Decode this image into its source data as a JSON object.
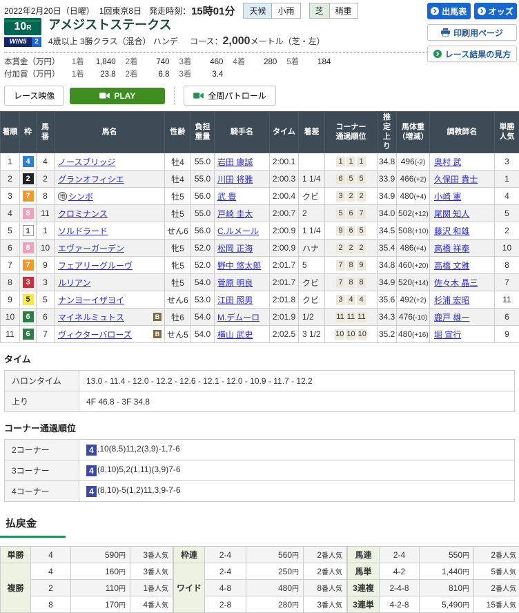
{
  "page": {
    "date": "2022年2月20日（日曜）",
    "meeting": "1回東京8日",
    "start_label": "発走時刻：",
    "start_time": "15時01分",
    "weather_label": "天候",
    "weather_value": "小雨",
    "turf_label": "芝",
    "turf_value": "稍重"
  },
  "actions": {
    "entries": "出馬表",
    "odds": "オッズ",
    "print": "印刷用ページ",
    "guide": "レース結果の見方"
  },
  "race": {
    "number": "10",
    "number_suffix": "R",
    "win5": "WIN5",
    "win5_leg": "2",
    "title": "アメジストステークス",
    "conditions": "4歳以上 3勝クラス（混合） ハンデ",
    "course_label": "コース：",
    "course_distance": "2,000",
    "course_suffix": "メートル（芝・左）",
    "prize_main_label": "本賞金（万円）",
    "prize_main": [
      [
        "1着",
        "1,840"
      ],
      [
        "2着",
        "740"
      ],
      [
        "3着",
        "460"
      ],
      [
        "4着",
        "280"
      ],
      [
        "5着",
        "184"
      ]
    ],
    "prize_extra_label": "付加賞（万円）",
    "prize_extra": [
      [
        "1着",
        "23.8"
      ],
      [
        "2着",
        "6.8"
      ],
      [
        "3着",
        "3.4"
      ]
    ]
  },
  "video": {
    "race_video": "レース映像",
    "play": "PLAY",
    "patrol": "全周パトロール"
  },
  "results": {
    "headers": [
      "着順",
      "枠",
      "馬\n番",
      "馬名",
      "性齢",
      "負担\n重量",
      "騎手名",
      "タイム",
      "着差",
      "コーナー\n通過順位",
      "推\n定\n上\nり",
      "馬体重\n（増減）",
      "調教師名",
      "単勝\n人気"
    ],
    "rows": [
      {
        "rank": "1",
        "waku": "4",
        "num": "4",
        "mark": "",
        "name": "ノースブリッジ",
        "b": false,
        "sex": "牡4",
        "load": "55.0",
        "jockey": "岩田 康誠",
        "time": "2:00.1",
        "margin": "",
        "corners": [
          "1",
          "1",
          "1"
        ],
        "agari": "34.8",
        "bw": "496",
        "bwd": "(-2)",
        "trainer": "奥村 武",
        "pop": "3"
      },
      {
        "rank": "2",
        "waku": "2",
        "num": "2",
        "mark": "",
        "name": "グランオフィシエ",
        "b": false,
        "sex": "牡4",
        "load": "55.0",
        "jockey": "川田 将雅",
        "time": "2:00.3",
        "margin": "1 1/4",
        "corners": [
          "6",
          "5",
          "5"
        ],
        "agari": "33.9",
        "bw": "466",
        "bwd": "(+2)",
        "trainer": "久保田 貴士",
        "pop": "1"
      },
      {
        "rank": "3",
        "waku": "7",
        "num": "8",
        "mark": "地",
        "name": "シンボ",
        "b": false,
        "sex": "牡5",
        "load": "56.0",
        "jockey": "武 豊",
        "time": "2:00.4",
        "margin": "クビ",
        "corners": [
          "3",
          "2",
          "2"
        ],
        "agari": "34.9",
        "bw": "480",
        "bwd": "(+4)",
        "trainer": "小崎 憲",
        "pop": "4"
      },
      {
        "rank": "4",
        "waku": "8",
        "num": "11",
        "mark": "",
        "name": "クロミナンス",
        "b": false,
        "sex": "牡5",
        "load": "55.0",
        "jockey": "戸崎 圭太",
        "time": "2:00.7",
        "margin": "2",
        "corners": [
          "5",
          "6",
          "7"
        ],
        "agari": "34.0",
        "bw": "502",
        "bwd": "(+12)",
        "trainer": "尾関 知人",
        "pop": "5"
      },
      {
        "rank": "5",
        "waku": "1",
        "num": "1",
        "mark": "",
        "name": "ソルドラード",
        "b": false,
        "sex": "せん6",
        "load": "56.0",
        "jockey": "C.ルメール",
        "time": "2:00.9",
        "margin": "1 1/4",
        "corners": [
          "9",
          "6",
          "5"
        ],
        "agari": "34.5",
        "bw": "508",
        "bwd": "(+10)",
        "trainer": "藤沢 和雄",
        "pop": "2"
      },
      {
        "rank": "6",
        "waku": "8",
        "num": "10",
        "mark": "",
        "name": "エヴァーガーデン",
        "b": false,
        "sex": "牝5",
        "load": "52.0",
        "jockey": "松岡 正海",
        "time": "2:00.9",
        "margin": "ハナ",
        "corners": [
          "2",
          "2",
          "2"
        ],
        "agari": "35.4",
        "bw": "486",
        "bwd": "(+4)",
        "trainer": "高橋 祥泰",
        "pop": "10"
      },
      {
        "rank": "7",
        "waku": "7",
        "num": "9",
        "mark": "",
        "name": "フェアリーグルーヴ",
        "b": false,
        "sex": "牝5",
        "load": "52.0",
        "jockey": "野中 悠太郎",
        "time": "2:01.7",
        "margin": "5",
        "corners": [
          "7",
          "8",
          "9"
        ],
        "agari": "34.8",
        "bw": "460",
        "bwd": "(+20)",
        "trainer": "高橋 文雅",
        "pop": "8"
      },
      {
        "rank": "8",
        "waku": "3",
        "num": "3",
        "mark": "",
        "name": "ルリアン",
        "b": false,
        "sex": "牡5",
        "load": "54.0",
        "jockey": "菅原 明良",
        "time": "2:01.7",
        "margin": "クビ",
        "corners": [
          "7",
          "8",
          "8"
        ],
        "agari": "34.9",
        "bw": "520",
        "bwd": "(+14)",
        "trainer": "佐々木 晶三",
        "pop": "7"
      },
      {
        "rank": "9",
        "waku": "5",
        "num": "5",
        "mark": "",
        "name": "ナンヨーイザヨイ",
        "b": false,
        "sex": "せん6",
        "load": "53.0",
        "jockey": "江田 照男",
        "time": "2:01.8",
        "margin": "クビ",
        "corners": [
          "3",
          "4",
          "4"
        ],
        "agari": "35.6",
        "bw": "492",
        "bwd": "(+2)",
        "trainer": "杉浦 宏昭",
        "pop": "11"
      },
      {
        "rank": "10",
        "waku": "6",
        "num": "6",
        "mark": "",
        "name": "マイネルミュトス",
        "b": true,
        "sex": "牡6",
        "load": "54.0",
        "jockey": "M.デムーロ",
        "time": "2:01.9",
        "margin": "1/2",
        "corners": [
          "11",
          "11",
          "11"
        ],
        "agari": "34.3",
        "bw": "476",
        "bwd": "(-10)",
        "trainer": "鹿戸 雄一",
        "pop": "6"
      },
      {
        "rank": "11",
        "waku": "6",
        "num": "7",
        "mark": "",
        "name": "ヴィクターバローズ",
        "b": true,
        "sex": "せん5",
        "load": "54.0",
        "jockey": "横山 武史",
        "time": "2:02.5",
        "margin": "3 1/2",
        "corners": [
          "10",
          "10",
          "10"
        ],
        "agari": "35.2",
        "bw": "480",
        "bwd": "(+16)",
        "trainer": "堀 宣行",
        "pop": "9"
      }
    ],
    "blinker_badge": "B"
  },
  "time_section": {
    "title": "タイム",
    "halon_label": "ハロンタイム",
    "halon_value": "13.0 - 11.4 - 12.0 - 12.2 - 12.6 - 12.1 - 12.0 - 10.9 - 11.7 - 12.2",
    "agari_label": "上り",
    "agari_value": "4F 46.8 - 3F 34.8"
  },
  "corner_section": {
    "title": "コーナー通過順位",
    "rows": [
      {
        "label": "2コーナー",
        "prefix": "4",
        "rest": ",10(8,5)11,2(3,9)-1,7-6"
      },
      {
        "label": "3コーナー",
        "prefix": "4",
        "rest": "(8,10)5,2(1,11)(3,9)7-6"
      },
      {
        "label": "4コーナー",
        "prefix": "4",
        "rest": "(8,10)-5(1,2)11,3,9-7-6"
      }
    ]
  },
  "payout": {
    "title": "払戻金",
    "unit": "円",
    "pop_suffix": "番人気",
    "groups": [
      {
        "rows": [
          {
            "label": "単勝",
            "span": 1,
            "combo": "4",
            "amount": "590",
            "pop": "3"
          },
          {
            "label": "複勝",
            "span": 3,
            "combo": "4",
            "amount": "160",
            "pop": "3"
          },
          {
            "combo": "2",
            "amount": "110",
            "pop": "1"
          },
          {
            "combo": "8",
            "amount": "170",
            "pop": "4"
          }
        ]
      },
      {
        "rows": [
          {
            "label": "枠連",
            "span": 1,
            "combo": "2-4",
            "amount": "560",
            "pop": "2"
          },
          {
            "label": "ワイド",
            "span": 3,
            "combo": "2-4",
            "amount": "250",
            "pop": "2"
          },
          {
            "combo": "4-8",
            "amount": "480",
            "pop": "8"
          },
          {
            "combo": "2-8",
            "amount": "280",
            "pop": "3"
          }
        ]
      },
      {
        "rows": [
          {
            "label": "馬連",
            "span": 1,
            "combo": "2-4",
            "amount": "550",
            "pop": "2"
          },
          {
            "label": "馬単",
            "span": 1,
            "combo": "4-2",
            "amount": "1,440",
            "pop": "5"
          },
          {
            "label": "3連複",
            "span": 1,
            "combo": "2-4-8",
            "amount": "810",
            "pop": "2"
          },
          {
            "label": "3連単",
            "span": 1,
            "combo": "4-2-8",
            "amount": "5,490",
            "pop": "15"
          }
        ]
      }
    ]
  },
  "colors": {
    "waku_bg": {
      "1": "#ffffff",
      "2": "#222222",
      "3": "#c9303e",
      "4": "#2f7fd4",
      "5": "#f4e944",
      "6": "#2e7d46",
      "7": "#f2992e",
      "8": "#eea0bd"
    },
    "waku_fg": {
      "1": "#333333",
      "2": "#ffffff",
      "3": "#ffffff",
      "4": "#ffffff",
      "5": "#333333",
      "6": "#ffffff",
      "7": "#ffffff",
      "8": "#ffffff"
    },
    "waku_border": {
      "1": "#999999"
    }
  }
}
